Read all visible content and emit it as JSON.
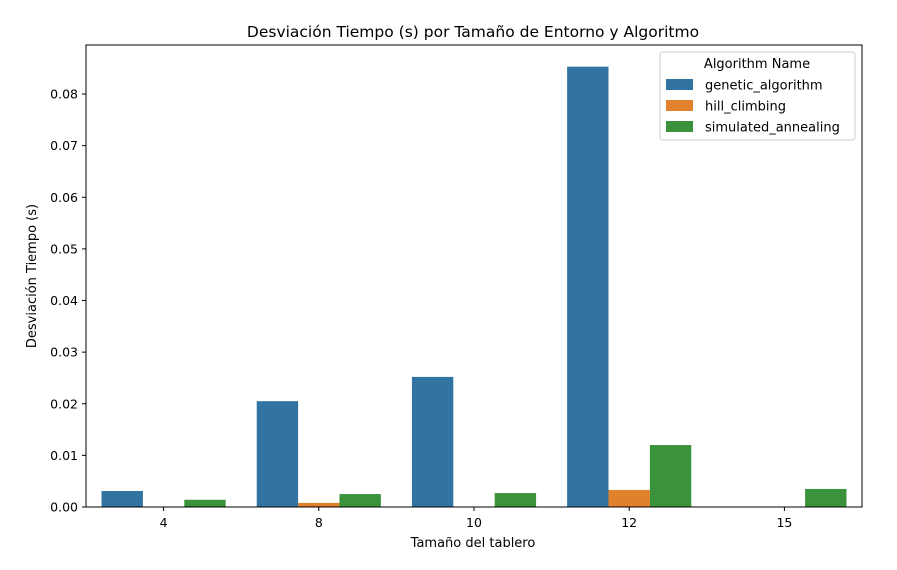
{
  "chart_data": {
    "type": "bar",
    "title": "Desviación Tiempo (s) por Tamaño de Entorno y Algoritmo",
    "xlabel": "Tamaño del tablero",
    "ylabel": "Desviación Tiempo (s)",
    "categories": [
      "4",
      "8",
      "10",
      "12",
      "15"
    ],
    "ylim": [
      0,
      0.0895
    ],
    "yticks": [
      0.0,
      0.01,
      0.02,
      0.03,
      0.04,
      0.05,
      0.06,
      0.07,
      0.08
    ],
    "ytick_labels": [
      "0.00",
      "0.01",
      "0.02",
      "0.03",
      "0.04",
      "0.05",
      "0.06",
      "0.07",
      "0.08"
    ],
    "grid": false,
    "legend": {
      "title": "Algorithm Name",
      "placement": "top-right"
    },
    "series": [
      {
        "name": "genetic_algorithm",
        "color": "#3274a1",
        "values": [
          0.0031,
          0.0205,
          0.0252,
          0.0853,
          null
        ]
      },
      {
        "name": "hill_climbing",
        "color": "#e1812c",
        "values": [
          null,
          0.0008,
          null,
          0.0033,
          null
        ]
      },
      {
        "name": "simulated_annealing",
        "color": "#3a923a",
        "values": [
          0.0014,
          0.0025,
          0.0027,
          0.012,
          0.0035
        ]
      }
    ]
  }
}
